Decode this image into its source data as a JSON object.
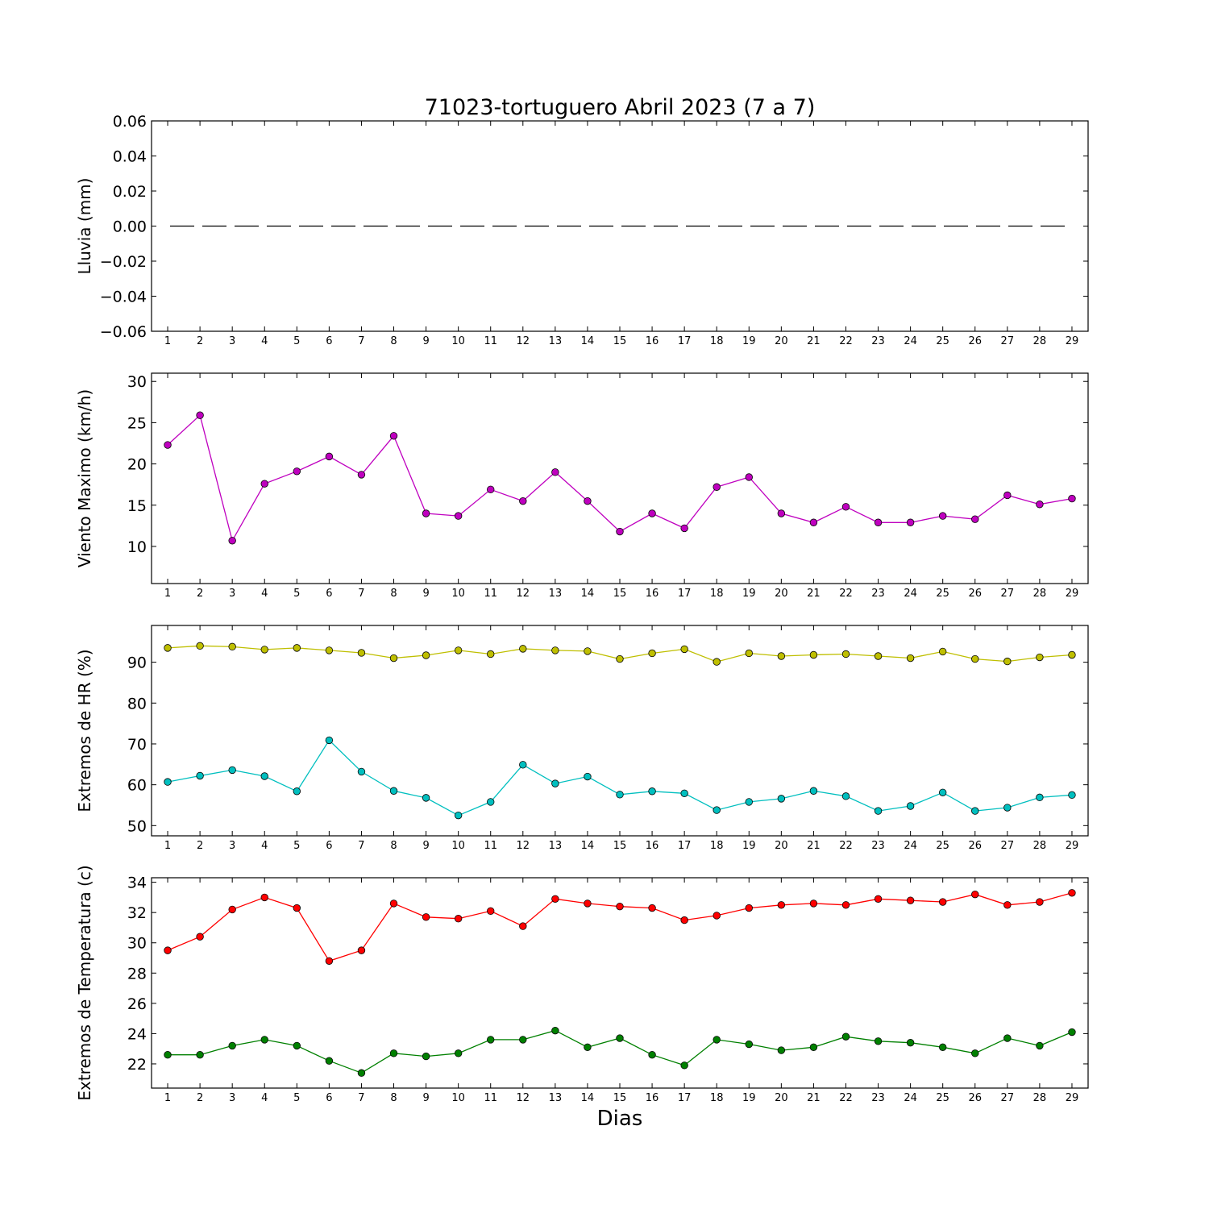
{
  "figure": {
    "title": "71023-tortuguero Abril 2023  (7 a 7)",
    "xlabel": "Dias"
  },
  "chart_data": [
    {
      "type": "line",
      "ylabel": "Lluvia (mm)",
      "x": [
        1,
        2,
        3,
        4,
        5,
        6,
        7,
        8,
        9,
        10,
        11,
        12,
        13,
        14,
        15,
        16,
        17,
        18,
        19,
        20,
        21,
        22,
        23,
        24,
        25,
        26,
        27,
        28,
        29
      ],
      "xlim": [
        0.5,
        29.5
      ],
      "ylim": [
        -0.06,
        0.06
      ],
      "yticks": [
        -0.06,
        -0.04,
        -0.02,
        0.0,
        0.02,
        0.04,
        0.06
      ],
      "yticklabels": [
        "−0.06",
        "−0.04",
        "−0.02",
        "0.00",
        "0.02",
        "0.04",
        "0.06"
      ],
      "series": [
        {
          "values": [
            0,
            0,
            0,
            0,
            0,
            0,
            0,
            0,
            0,
            0,
            0,
            0,
            0,
            0,
            0,
            0,
            0,
            0,
            0,
            0,
            0,
            0,
            0,
            0,
            0,
            0,
            0,
            0,
            0
          ],
          "color": "#000000",
          "style": "dashed",
          "markers": false
        }
      ]
    },
    {
      "type": "line",
      "ylabel": "Viento Maximo (km/h)",
      "x": [
        1,
        2,
        3,
        4,
        5,
        6,
        7,
        8,
        9,
        10,
        11,
        12,
        13,
        14,
        15,
        16,
        17,
        18,
        19,
        20,
        21,
        22,
        23,
        24,
        25,
        26,
        27,
        28,
        29
      ],
      "xlim": [
        0.5,
        29.5
      ],
      "ylim": [
        5.5,
        31
      ],
      "yticks": [
        10,
        15,
        20,
        25,
        30
      ],
      "yticklabels": [
        "10",
        "15",
        "20",
        "25",
        "30"
      ],
      "series": [
        {
          "values": [
            22.3,
            25.9,
            10.7,
            17.6,
            19.1,
            20.9,
            18.7,
            23.4,
            14.0,
            13.7,
            16.9,
            15.5,
            19.0,
            15.5,
            11.8,
            14.0,
            12.2,
            17.2,
            18.4,
            14.0,
            12.9,
            14.8,
            12.9,
            12.9,
            13.7,
            13.3,
            16.2,
            15.1,
            15.8
          ],
          "color": "#bf00bf",
          "style": "solid",
          "markers": true
        }
      ]
    },
    {
      "type": "line",
      "ylabel": "Extremos de HR (%)",
      "x": [
        1,
        2,
        3,
        4,
        5,
        6,
        7,
        8,
        9,
        10,
        11,
        12,
        13,
        14,
        15,
        16,
        17,
        18,
        19,
        20,
        21,
        22,
        23,
        24,
        25,
        26,
        27,
        28,
        29
      ],
      "xlim": [
        0.5,
        29.5
      ],
      "ylim": [
        47.5,
        99
      ],
      "yticks": [
        50,
        60,
        70,
        80,
        90
      ],
      "yticklabels": [
        "50",
        "60",
        "70",
        "80",
        "90"
      ],
      "series": [
        {
          "values": [
            93.5,
            94.0,
            93.8,
            93.1,
            93.5,
            92.9,
            92.3,
            91.0,
            91.7,
            92.9,
            92.0,
            93.3,
            92.9,
            92.7,
            90.8,
            92.2,
            93.2,
            90.1,
            92.2,
            91.5,
            91.8,
            92.0,
            91.5,
            91.0,
            92.6,
            90.8,
            90.2,
            91.2,
            91.8
          ],
          "color": "#bfbf00",
          "style": "solid",
          "markers": true
        },
        {
          "values": [
            60.7,
            62.2,
            63.6,
            62.1,
            58.4,
            70.9,
            63.2,
            58.5,
            56.8,
            52.5,
            55.8,
            64.9,
            60.3,
            62.0,
            57.6,
            58.4,
            57.9,
            53.8,
            55.8,
            56.6,
            58.5,
            57.2,
            53.6,
            54.8,
            58.1,
            53.6,
            54.4,
            56.9,
            57.5
          ],
          "color": "#00bfbf",
          "style": "solid",
          "markers": true
        }
      ]
    },
    {
      "type": "line",
      "ylabel": "Extremos de Temperatura (c)",
      "x": [
        1,
        2,
        3,
        4,
        5,
        6,
        7,
        8,
        9,
        10,
        11,
        12,
        13,
        14,
        15,
        16,
        17,
        18,
        19,
        20,
        21,
        22,
        23,
        24,
        25,
        26,
        27,
        28,
        29
      ],
      "xlim": [
        0.5,
        29.5
      ],
      "ylim": [
        20.4,
        34.3
      ],
      "yticks": [
        22,
        24,
        26,
        28,
        30,
        32,
        34
      ],
      "yticklabels": [
        "22",
        "24",
        "26",
        "28",
        "30",
        "32",
        "34"
      ],
      "series": [
        {
          "values": [
            29.5,
            30.4,
            32.2,
            33.0,
            32.3,
            28.8,
            29.5,
            32.6,
            31.7,
            31.6,
            32.1,
            31.1,
            32.9,
            32.6,
            32.4,
            32.3,
            31.5,
            31.8,
            32.3,
            32.5,
            32.6,
            32.5,
            32.9,
            32.8,
            32.7,
            33.2,
            32.5,
            32.7,
            33.3
          ],
          "color": "#ff0000",
          "style": "solid",
          "markers": true
        },
        {
          "values": [
            22.6,
            22.6,
            23.2,
            23.6,
            23.2,
            22.2,
            21.4,
            22.7,
            22.5,
            22.7,
            23.6,
            23.6,
            24.2,
            23.1,
            23.7,
            22.6,
            21.9,
            23.6,
            23.3,
            22.9,
            23.1,
            23.8,
            23.5,
            23.4,
            23.1,
            22.7,
            23.7,
            23.2,
            24.1
          ],
          "color": "#008000",
          "style": "solid",
          "markers": true
        }
      ]
    }
  ]
}
